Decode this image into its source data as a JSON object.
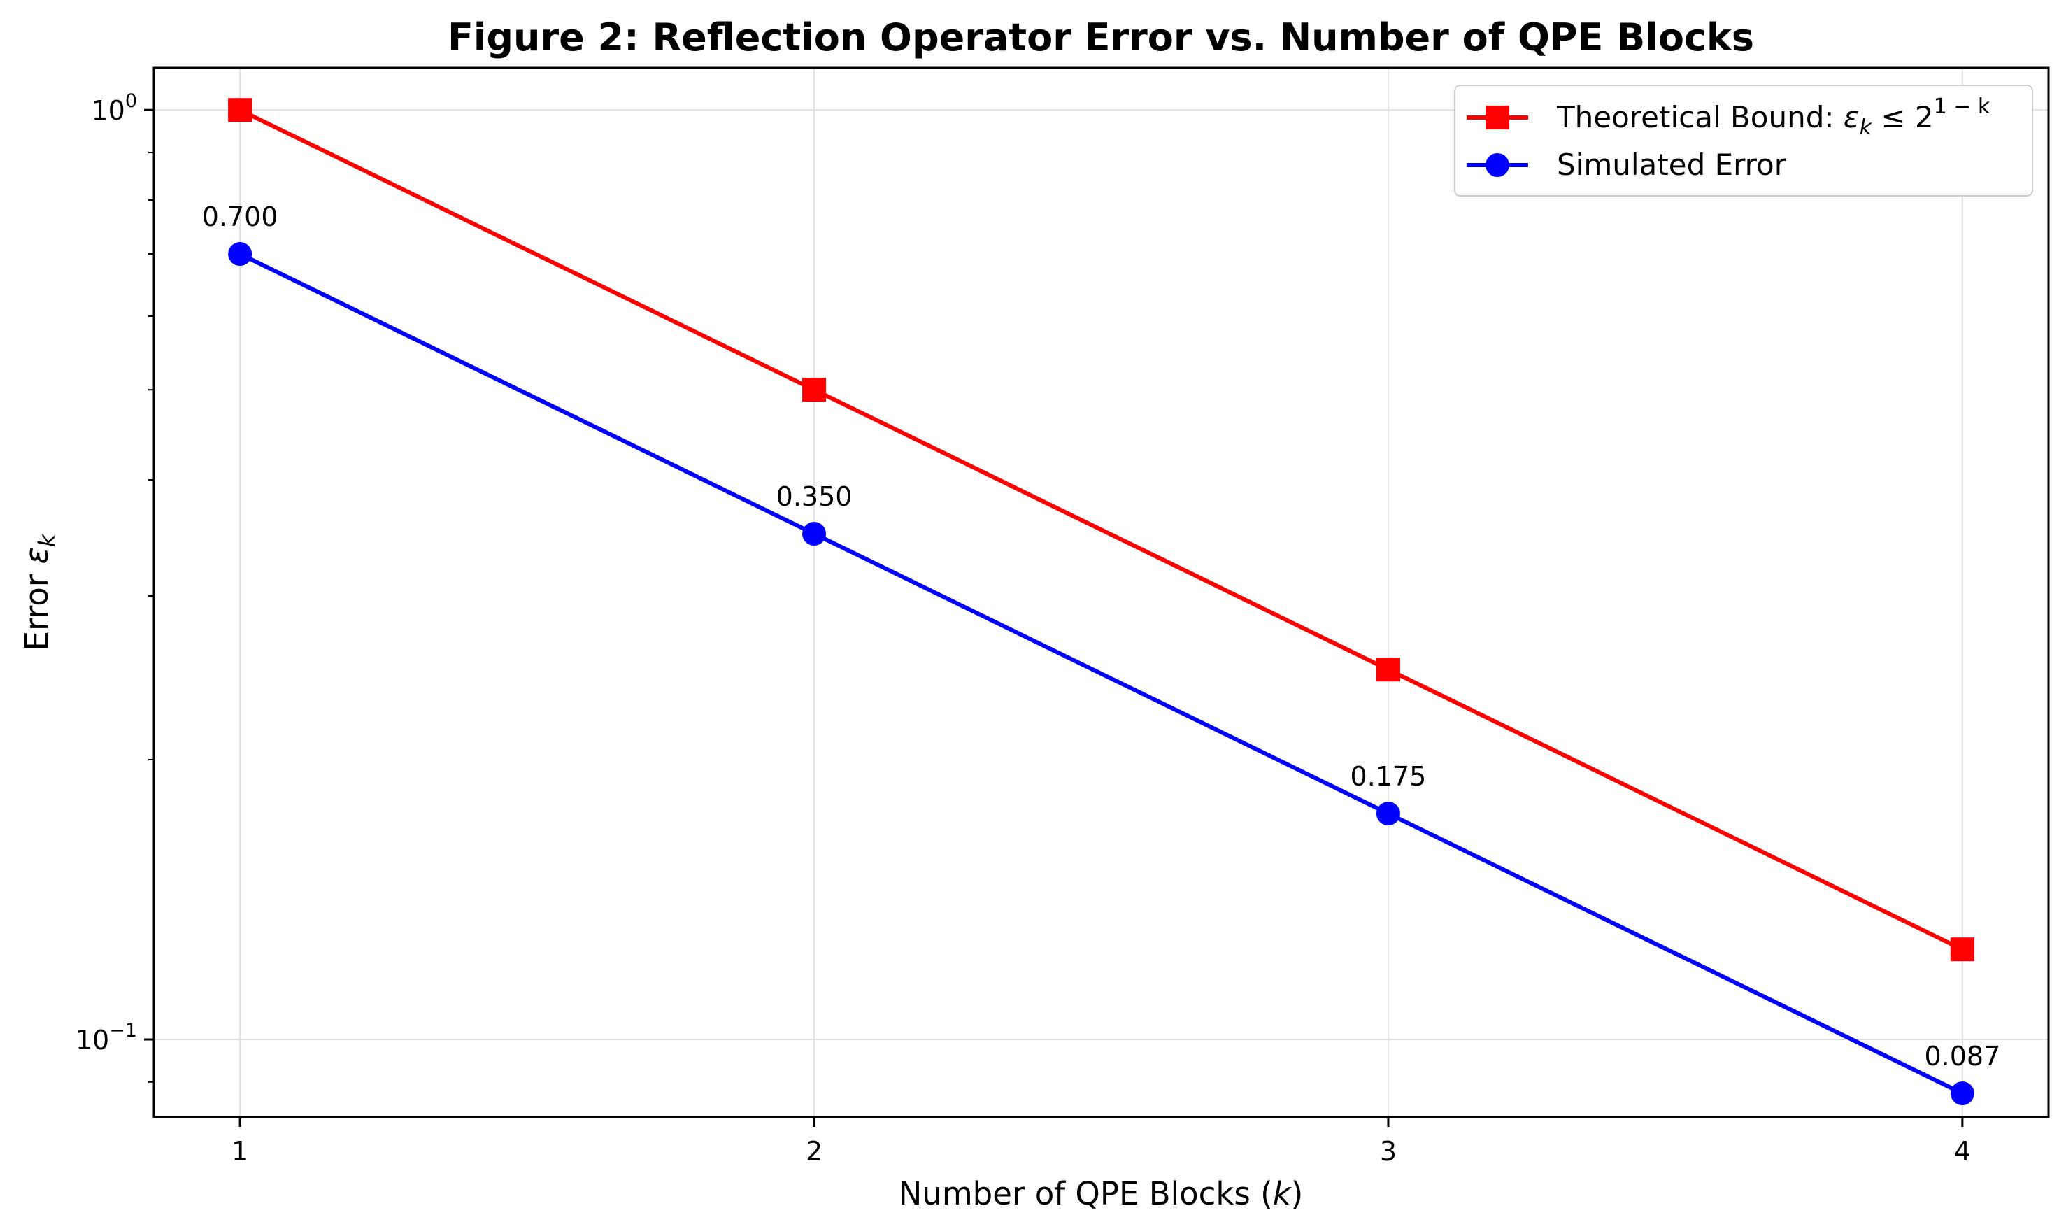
{
  "chart_data": {
    "type": "line",
    "title": "Figure 2: Reflection Operator Error vs. Number of QPE Blocks",
    "xlabel": {
      "text": "Number of QPE Blocks (",
      "var": "k",
      "close": ")"
    },
    "ylabel": {
      "text": "Error ",
      "var": "ε",
      "sub": "k"
    },
    "x": [
      1,
      2,
      3,
      4
    ],
    "x_tick_labels": [
      "1",
      "2",
      "3",
      "4"
    ],
    "xlim": [
      0.85,
      4.15
    ],
    "ylim": [
      0.0825,
      1.11
    ],
    "y_scale": "log",
    "y_major_ticks": [
      {
        "value": 1.0,
        "base": "10",
        "exp": "0"
      },
      {
        "value": 0.1,
        "base": "10",
        "exp": "−1"
      }
    ],
    "y_minor_ticks": [
      0.09,
      0.2,
      0.3,
      0.4,
      0.5,
      0.6,
      0.7,
      0.8,
      0.9
    ],
    "grid": true,
    "legend_position": "top-right",
    "series": [
      {
        "name": "Theoretical Bound: ",
        "name_math": {
          "var": "ε",
          "sub": "k",
          "rel": " ≤ 2",
          "sup": "1 − k"
        },
        "values": [
          1.0,
          0.5,
          0.25,
          0.125
        ],
        "color": "#ff0000",
        "marker": "square"
      },
      {
        "name": "Simulated Error",
        "values": [
          0.7,
          0.35,
          0.175,
          0.0875
        ],
        "color": "#0000ff",
        "marker": "circle",
        "data_labels": [
          "0.700",
          "0.350",
          "0.175",
          "0.087"
        ]
      }
    ]
  }
}
